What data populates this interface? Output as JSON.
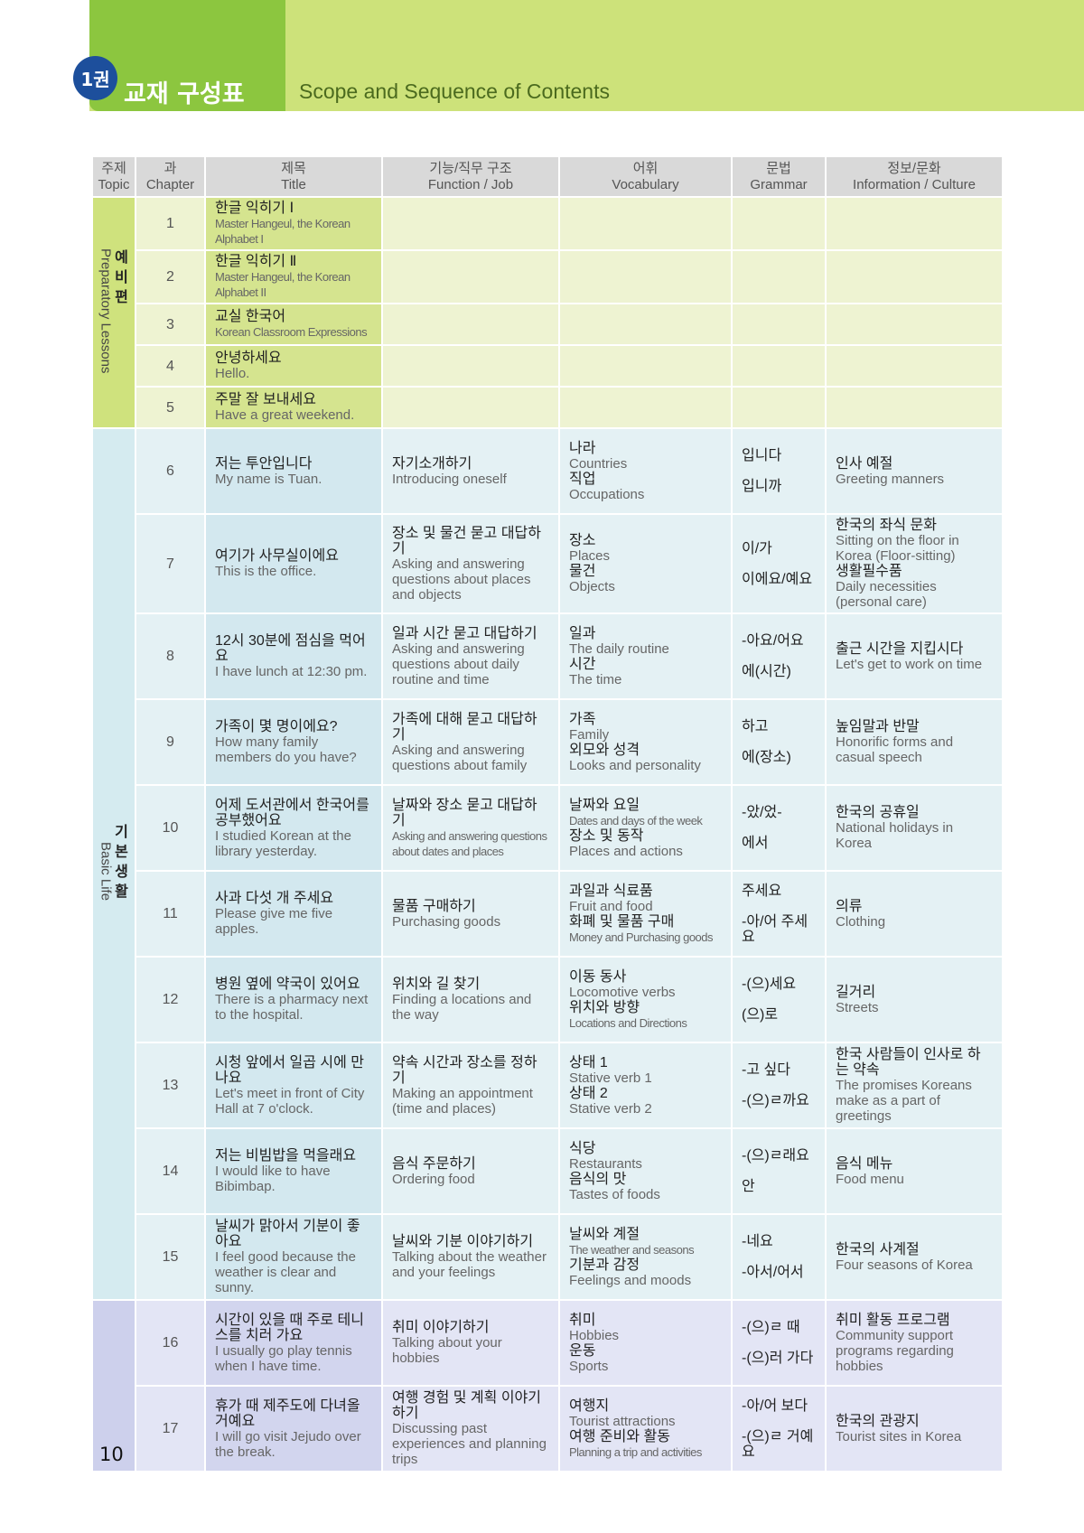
{
  "header": {
    "badge": "1권",
    "title_ko": "교재 구성표",
    "title_en": "Scope and Sequence of Contents"
  },
  "columns": [
    [
      "주제",
      "Topic"
    ],
    [
      "과",
      "Chapter"
    ],
    [
      "제목",
      "Title"
    ],
    [
      "기능/직무 구조",
      "Function / Job"
    ],
    [
      "어휘",
      "Vocabulary"
    ],
    [
      "문법",
      "Grammar"
    ],
    [
      "정보/문화",
      "Information / Culture"
    ]
  ],
  "topics": {
    "prep_ko": "예비편",
    "prep_en": "Preparatory Lessons",
    "basic_ko": "기본생활",
    "basic_en": "Basic Life"
  },
  "rows": [
    {
      "ch": "1",
      "title_ko": "한글 익히기 Ⅰ",
      "title_en": "Master Hangeul, the Korean Alphabet I"
    },
    {
      "ch": "2",
      "title_ko": "한글 익히기 Ⅱ",
      "title_en": "Master Hangeul, the Korean Alphabet II"
    },
    {
      "ch": "3",
      "title_ko": "교실 한국어",
      "title_en": "Korean Classroom Expressions"
    },
    {
      "ch": "4",
      "title_ko": "안녕하세요",
      "title_en": "Hello."
    },
    {
      "ch": "5",
      "title_ko": "주말 잘 보내세요",
      "title_en": "Have a great weekend."
    },
    {
      "ch": "6",
      "title_ko": "저는 투안입니다",
      "title_en": "My name is Tuan.",
      "func_ko": "자기소개하기",
      "func_en": "Introducing oneself",
      "vocab": [
        [
          "나라",
          "Countries"
        ],
        [
          "직업",
          "Occupations"
        ]
      ],
      "grammar": [
        "입니다",
        "입니까"
      ],
      "info_ko": "인사 예절",
      "info_en": "Greeting manners"
    },
    {
      "ch": "7",
      "title_ko": "여기가 사무실이에요",
      "title_en": "This is the office.",
      "func_ko": "장소 및 물건 묻고 대답하기",
      "func_en": "Asking and answering questions about places and objects",
      "vocab": [
        [
          "장소",
          "Places"
        ],
        [
          "물건",
          "Objects"
        ]
      ],
      "grammar": [
        "이/가",
        "이에요/예요"
      ],
      "info_ko": "한국의 좌식 문화",
      "info_en": "Sitting on the floor in Korea (Floor-sitting)",
      "info2_ko": "생활필수품",
      "info2_en": "Daily necessities (personal care)"
    },
    {
      "ch": "8",
      "title_ko": "12시 30분에 점심을 먹어요",
      "title_en": "I have lunch at 12:30 pm.",
      "func_ko": "일과 시간 묻고 대답하기",
      "func_en": "Asking and answering questions about daily routine and time",
      "vocab": [
        [
          "일과",
          "The daily routine"
        ],
        [
          "시간",
          "The time"
        ]
      ],
      "grammar": [
        "-아요/어요",
        "에(시간)"
      ],
      "info_ko": "출근 시간을 지킵시다",
      "info_en": "Let's get to work on time"
    },
    {
      "ch": "9",
      "title_ko": "가족이 몇 명이에요?",
      "title_en": "How many family members do you have?",
      "func_ko": "가족에 대해 묻고 대답하기",
      "func_en": "Asking and answering questions about family",
      "vocab": [
        [
          "가족",
          "Family"
        ],
        [
          "외모와 성격",
          "Looks and personality"
        ]
      ],
      "grammar": [
        "하고",
        "에(장소)"
      ],
      "info_ko": "높임말과 반말",
      "info_en": "Honorific forms and casual speech"
    },
    {
      "ch": "10",
      "title_ko": "어제 도서관에서 한국어를 공부했어요",
      "title_en": "I studied Korean at the library yesterday.",
      "func_ko": "날짜와 장소 묻고 대답하기",
      "func_en": "Asking and answering questions about dates and places",
      "vocab": [
        [
          "날짜와 요일",
          "Dates and days of the week"
        ],
        [
          "장소 및 동작",
          "Places and actions"
        ]
      ],
      "grammar": [
        "-았/었-",
        "에서"
      ],
      "info_ko": "한국의 공휴일",
      "info_en": "National holidays in Korea"
    },
    {
      "ch": "11",
      "title_ko": "사과 다섯 개 주세요",
      "title_en": "Please give me five apples.",
      "func_ko": "물품 구매하기",
      "func_en": "Purchasing goods",
      "vocab": [
        [
          "과일과 식료품",
          "Fruit and food"
        ],
        [
          "화폐 및 물품 구매",
          "Money and Purchasing goods"
        ]
      ],
      "grammar": [
        "주세요",
        "-아/어 주세요"
      ],
      "info_ko": "의류",
      "info_en": "Clothing"
    },
    {
      "ch": "12",
      "title_ko": "병원 옆에 약국이 있어요",
      "title_en": "There is a pharmacy next to the hospital.",
      "func_ko": "위치와 길 찾기",
      "func_en": "Finding a locations and the way",
      "vocab": [
        [
          "이동 동사",
          "Locomotive verbs"
        ],
        [
          "위치와 방향",
          "Locations and Directions"
        ]
      ],
      "grammar": [
        "-(으)세요",
        "(으)로"
      ],
      "info_ko": "길거리",
      "info_en": "Streets"
    },
    {
      "ch": "13",
      "title_ko": "시청 앞에서 일곱 시에 만나요",
      "title_en": "Let's meet in front of City Hall at 7 o'clock.",
      "func_ko": "약속 시간과 장소를 정하기",
      "func_en": "Making an appointment (time and places)",
      "vocab": [
        [
          "상태 1",
          "Stative verb 1"
        ],
        [
          "상태 2",
          "Stative verb 2"
        ]
      ],
      "grammar": [
        "-고 싶다",
        "-(으)ㄹ까요"
      ],
      "info_ko": "한국 사람들이 인사로 하는 약속",
      "info_en": "The promises Koreans make as a part of greetings"
    },
    {
      "ch": "14",
      "title_ko": "저는 비빔밥을 먹을래요",
      "title_en": "I would like to have Bibimbap.",
      "func_ko": "음식 주문하기",
      "func_en": "Ordering food",
      "vocab": [
        [
          "식당",
          "Restaurants"
        ],
        [
          "음식의 맛",
          "Tastes of foods"
        ]
      ],
      "grammar": [
        "-(으)ㄹ래요",
        "안"
      ],
      "info_ko": "음식 메뉴",
      "info_en": "Food menu"
    },
    {
      "ch": "15",
      "title_ko": "날씨가 맑아서 기분이 좋아요",
      "title_en": "I feel good because the weather is clear and sunny.",
      "func_ko": "날씨와 기분 이야기하기",
      "func_en": "Talking about the weather and your feelings",
      "vocab": [
        [
          "날씨와 계절",
          "The weather and seasons"
        ],
        [
          "기분과 감정",
          "Feelings and moods"
        ]
      ],
      "grammar": [
        "-네요",
        "-아서/어서"
      ],
      "info_ko": "한국의 사계절",
      "info_en": "Four seasons of Korea"
    },
    {
      "ch": "16",
      "title_ko": "시간이 있을 때 주로 테니스를 치러 가요",
      "title_en": "I usually go play tennis when I have time.",
      "func_ko": "취미 이야기하기",
      "func_en": "Talking about your hobbies",
      "vocab": [
        [
          "취미",
          "Hobbies"
        ],
        [
          "운동",
          "Sports"
        ]
      ],
      "grammar": [
        "-(으)ㄹ 때",
        "-(으)러 가다"
      ],
      "info_ko": "취미 활동 프로그램",
      "info_en": "Community support programs regarding hobbies"
    },
    {
      "ch": "17",
      "title_ko": "휴가 때 제주도에 다녀올 거예요",
      "title_en": "I will go visit Jejudo over the break.",
      "func_ko": "여행 경험 및 계획 이야기하기",
      "func_en": "Discussing past experiences and planning trips",
      "vocab": [
        [
          "여행지",
          "Tourist attractions"
        ],
        [
          "여행 준비와 활동",
          "Planning a trip and activities"
        ]
      ],
      "grammar": [
        "-아/어 보다",
        "-(으)ㄹ 거예요"
      ],
      "info_ko": "한국의 관광지",
      "info_en": "Tourist sites in Korea"
    }
  ],
  "page_number": "10",
  "colors": {
    "accent_green": "#8cc63f",
    "band": "#cde27a",
    "badge": "#1d4f9c"
  }
}
